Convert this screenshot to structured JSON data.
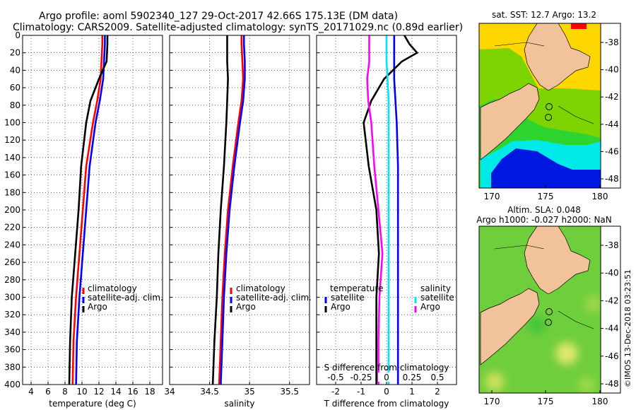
{
  "header": {
    "line1": "Argo profile: aoml 5902340_127 29-Oct-2017 42.66S 175.13E (DM data)",
    "line2": "Climatology: CARS2009. Satellite-adjusted climatology: synTS_20171029.nc (0.89d earlier)"
  },
  "colors": {
    "argo": "#000000",
    "climatology": "#ff0000",
    "satellite": "#0000ff",
    "salinity_satellite": "#00e5ff",
    "salinity_argo": "#ff00ff",
    "land": "#f2c29b",
    "sst_warm": "#ffd700",
    "sst_mid": "#7dd400",
    "sst_cool": "#00e8e8",
    "sst_cold": "#0018e0",
    "sla_bg": "#6fce3c"
  },
  "chart_data": [
    {
      "type": "line",
      "name": "temperature",
      "xlabel": "temperature (deg C)",
      "xlim": [
        3,
        19.5
      ],
      "xticks": [
        4,
        6,
        8,
        10,
        12,
        14,
        16,
        18
      ],
      "ylabel": "depth",
      "ylim": [
        400,
        0
      ],
      "yticks": [
        0,
        20,
        40,
        60,
        80,
        100,
        120,
        140,
        160,
        180,
        200,
        220,
        240,
        260,
        280,
        300,
        320,
        340,
        360,
        380,
        400
      ],
      "legend": [
        "climatology",
        "satellite-adj. clim.",
        "Argo"
      ],
      "depths": [
        0,
        10,
        30,
        50,
        75,
        100,
        150,
        200,
        250,
        300,
        350,
        400
      ],
      "series": [
        {
          "name": "climatology",
          "values": [
            12.4,
            12.4,
            12.3,
            12.2,
            11.8,
            11.3,
            10.5,
            10.1,
            9.7,
            9.3,
            9.0,
            8.9
          ]
        },
        {
          "name": "satellite-adj. clim.",
          "values": [
            12.7,
            12.7,
            12.6,
            12.5,
            12.1,
            11.6,
            10.9,
            10.5,
            10.1,
            9.7,
            9.4,
            9.3
          ]
        },
        {
          "name": "Argo",
          "values": [
            13.0,
            13.0,
            12.9,
            12.0,
            11.0,
            10.5,
            9.9,
            9.6,
            9.2,
            8.8,
            8.6,
            8.5
          ]
        }
      ]
    },
    {
      "type": "line",
      "name": "salinity",
      "xlabel": "salinity",
      "xlim": [
        34.0,
        35.75
      ],
      "xticks": [
        34,
        34.5,
        35,
        35.5
      ],
      "ylim": [
        400,
        0
      ],
      "legend": [
        "climatology",
        "satellite-adj. clim.",
        "Argo"
      ],
      "depths": [
        0,
        10,
        30,
        50,
        75,
        100,
        150,
        200,
        250,
        300,
        350,
        400
      ],
      "series": [
        {
          "name": "climatology",
          "values": [
            34.9,
            34.9,
            34.91,
            34.92,
            34.9,
            34.86,
            34.79,
            34.73,
            34.69,
            34.66,
            34.64,
            34.62
          ]
        },
        {
          "name": "satellite-adj. clim.",
          "values": [
            34.93,
            34.93,
            34.94,
            34.94,
            34.92,
            34.88,
            34.81,
            34.75,
            34.71,
            34.68,
            34.66,
            34.64
          ]
        },
        {
          "name": "Argo",
          "values": [
            34.72,
            34.72,
            34.72,
            34.73,
            34.72,
            34.71,
            34.68,
            34.64,
            34.61,
            34.59,
            34.56,
            34.54
          ]
        }
      ]
    },
    {
      "type": "line",
      "name": "difference",
      "xlabel": "T difference from climatology",
      "xlim": [
        -2.75,
        2.75
      ],
      "xticks": [
        -2,
        -1,
        0,
        1,
        2
      ],
      "sxlabel": "S difference from climatology",
      "sxlim": [
        -0.6875,
        0.6875
      ],
      "sxticks": [
        "-0.5",
        "-0.25",
        "0",
        "0.25",
        "0.5"
      ],
      "sxtick_values": [
        -0.5,
        -0.25,
        0,
        0.25,
        0.5
      ],
      "ylim": [
        400,
        0
      ],
      "legend_temperature": {
        "title": "temperature",
        "items": [
          "satellite",
          "Argo"
        ]
      },
      "legend_salinity": {
        "title": "salinity",
        "items": [
          "satellite",
          "Argo"
        ]
      },
      "depths": [
        0,
        10,
        20,
        30,
        50,
        75,
        100,
        150,
        200,
        250,
        300,
        350,
        400
      ],
      "series": [
        {
          "name": "T satellite",
          "values": [
            0.3,
            0.3,
            0.3,
            0.3,
            0.3,
            0.35,
            0.4,
            0.45,
            0.45,
            0.45,
            0.45,
            0.45,
            0.45
          ]
        },
        {
          "name": "T Argo",
          "values": [
            0.7,
            0.9,
            1.2,
            0.6,
            -0.1,
            -0.6,
            -0.9,
            -0.7,
            -0.4,
            -0.3,
            -0.4,
            -0.4,
            -0.4
          ]
        },
        {
          "name": "S satellite",
          "values": [
            0.0,
            0.0,
            0.0,
            0.0,
            0.01,
            0.02,
            0.02,
            0.02,
            0.02,
            0.02,
            0.02,
            0.02,
            0.02
          ]
        },
        {
          "name": "S Argo",
          "values": [
            -0.17,
            -0.17,
            -0.17,
            -0.17,
            -0.19,
            -0.18,
            -0.15,
            -0.12,
            -0.08,
            -0.04,
            -0.07,
            -0.08,
            -0.08
          ]
        }
      ]
    }
  ],
  "maps": {
    "sst": {
      "title": "sat. SST: 12.7 Argo: 13.2"
    },
    "sla": {
      "title1": "Altim. SLA: 0.048",
      "title2": "Argo h1000: -0.027 h2000: NaN"
    },
    "yticks": [
      "-38",
      "-40",
      "-42",
      "-44",
      "-46",
      "-48"
    ],
    "xticks": [
      "170",
      "175",
      "180"
    ]
  },
  "credit": "©IMOS 13-Dec-2018 03:23:51"
}
